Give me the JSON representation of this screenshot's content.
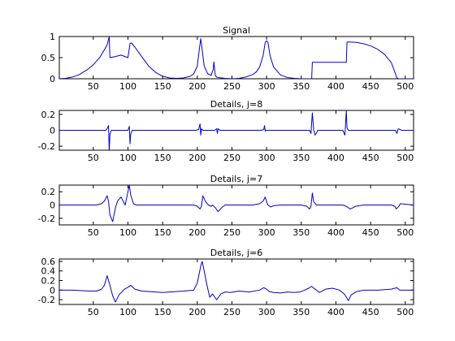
{
  "figure": {
    "background": "#ffffff",
    "line_color": "#0000c8"
  },
  "chart_data": [
    {
      "type": "line",
      "title": "Signal",
      "xlabel": "",
      "ylabel": "",
      "xlim": [
        1,
        512
      ],
      "ylim": [
        0,
        1
      ],
      "xticks": [
        50,
        100,
        150,
        200,
        250,
        300,
        350,
        400,
        450,
        500
      ],
      "yticks": [
        0,
        0.5,
        1
      ],
      "ytick_labels": [
        "0",
        "0.5",
        "1"
      ],
      "grid": false,
      "series": [
        {
          "x": [
            1,
            10,
            20,
            30,
            40,
            50,
            60,
            70,
            73,
            74,
            80,
            90,
            100,
            103,
            105,
            110,
            120,
            130,
            140,
            150,
            160,
            170,
            180,
            190,
            195,
            200,
            203,
            205,
            207,
            210,
            215,
            220,
            223,
            224,
            225,
            226,
            228,
            230,
            240,
            250,
            260,
            270,
            280,
            285,
            290,
            295,
            298,
            300,
            302,
            305,
            310,
            320,
            330,
            340,
            350,
            360,
            365,
            366,
            375,
            385,
            395,
            405,
            415,
            416,
            420,
            430,
            440,
            450,
            460,
            470,
            480,
            488,
            490,
            500,
            512
          ],
          "y": [
            0.0,
            0.01,
            0.04,
            0.1,
            0.2,
            0.33,
            0.52,
            0.8,
            1.0,
            0.5,
            0.52,
            0.56,
            0.5,
            0.83,
            0.85,
            0.75,
            0.52,
            0.3,
            0.15,
            0.06,
            0.02,
            0.01,
            0.02,
            0.06,
            0.12,
            0.3,
            0.7,
            0.95,
            0.7,
            0.3,
            0.12,
            0.08,
            0.22,
            0.4,
            0.24,
            0.08,
            0.04,
            0.03,
            0.01,
            0.0,
            0.01,
            0.04,
            0.1,
            0.16,
            0.28,
            0.55,
            0.86,
            0.9,
            0.86,
            0.55,
            0.28,
            0.09,
            0.03,
            0.01,
            0.0,
            0.0,
            0.0,
            0.39,
            0.39,
            0.39,
            0.39,
            0.39,
            0.39,
            0.87,
            0.87,
            0.86,
            0.83,
            0.78,
            0.7,
            0.58,
            0.38,
            0.02,
            0.0,
            0.0,
            0.0
          ]
        }
      ]
    },
    {
      "type": "line",
      "title": "Details, j=8",
      "xlabel": "",
      "ylabel": "",
      "xlim": [
        1,
        512
      ],
      "ylim": [
        -0.25,
        0.25
      ],
      "xticks": [
        50,
        100,
        150,
        200,
        250,
        300,
        350,
        400,
        450,
        500
      ],
      "yticks": [
        -0.2,
        0,
        0.2
      ],
      "ytick_labels": [
        "-0.2",
        "0",
        "0.2"
      ],
      "grid": false,
      "series": [
        {
          "x": [
            1,
            60,
            68,
            70,
            72,
            73,
            74,
            76,
            80,
            95,
            100,
            102,
            103,
            104,
            106,
            110,
            150,
            198,
            202,
            204,
            205,
            206,
            208,
            212,
            225,
            228,
            229,
            230,
            233,
            260,
            292,
            296,
            297,
            298,
            299,
            302,
            340,
            355,
            362,
            364,
            366,
            368,
            370,
            374,
            400,
            410,
            413,
            415,
            416,
            418,
            420,
            430,
            470,
            486,
            488,
            490,
            495,
            512
          ],
          "y": [
            0.0,
            0.0,
            0.0,
            0.02,
            0.06,
            -0.27,
            -0.05,
            0.0,
            0.0,
            0.0,
            0.0,
            0.05,
            -0.17,
            -0.05,
            0.0,
            0.0,
            0.0,
            0.0,
            0.01,
            0.08,
            -0.06,
            0.02,
            0.0,
            0.0,
            0.0,
            0.02,
            -0.04,
            0.02,
            0.0,
            0.0,
            0.0,
            0.01,
            0.06,
            -0.01,
            0.0,
            0.0,
            0.0,
            0.0,
            0.0,
            -0.04,
            0.22,
            0.0,
            -0.06,
            0.0,
            0.0,
            0.0,
            -0.06,
            0.25,
            0.03,
            0.0,
            0.0,
            0.0,
            0.0,
            0.0,
            -0.04,
            0.02,
            0.0,
            0.0
          ]
        }
      ]
    },
    {
      "type": "line",
      "title": "Details, j=7",
      "xlabel": "",
      "ylabel": "",
      "xlim": [
        1,
        512
      ],
      "ylim": [
        -0.3,
        0.3
      ],
      "xticks": [
        50,
        100,
        150,
        200,
        250,
        300,
        350,
        400,
        450,
        500
      ],
      "yticks": [
        -0.2,
        0,
        0.2
      ],
      "ytick_labels": [
        "-0.2",
        "0",
        "0.2"
      ],
      "grid": false,
      "series": [
        {
          "x": [
            1,
            55,
            62,
            66,
            70,
            72,
            74,
            78,
            82,
            85,
            90,
            96,
            100,
            102,
            104,
            108,
            112,
            120,
            160,
            195,
            200,
            204,
            206,
            208,
            212,
            216,
            220,
            222,
            226,
            230,
            235,
            240,
            280,
            290,
            295,
            298,
            300,
            302,
            306,
            310,
            320,
            350,
            358,
            362,
            364,
            366,
            368,
            372,
            380,
            395,
            410,
            415,
            418,
            420,
            423,
            428,
            440,
            470,
            480,
            485,
            487,
            490,
            493,
            512
          ],
          "y": [
            0.0,
            0.0,
            0.02,
            0.06,
            0.14,
            0.05,
            -0.15,
            -0.25,
            -0.04,
            0.06,
            0.12,
            0.0,
            0.2,
            0.3,
            0.15,
            0.02,
            0.0,
            0.0,
            0.0,
            0.0,
            -0.02,
            -0.06,
            -0.02,
            0.14,
            0.05,
            0.0,
            -0.02,
            0.0,
            -0.04,
            -0.1,
            -0.04,
            0.0,
            0.0,
            0.02,
            0.06,
            0.12,
            0.05,
            0.0,
            -0.03,
            -0.01,
            0.0,
            0.0,
            -0.02,
            -0.06,
            -0.02,
            0.18,
            0.05,
            0.0,
            0.0,
            0.0,
            0.0,
            -0.02,
            -0.04,
            -0.06,
            -0.05,
            -0.02,
            0.0,
            0.0,
            0.0,
            -0.02,
            -0.06,
            -0.03,
            0.02,
            0.0
          ]
        }
      ]
    },
    {
      "type": "line",
      "title": "Details, j=6",
      "xlabel": "",
      "ylabel": "",
      "xlim": [
        1,
        512
      ],
      "ylim": [
        -0.3,
        0.65
      ],
      "xticks": [
        50,
        100,
        150,
        200,
        250,
        300,
        350,
        400,
        450,
        500
      ],
      "yticks": [
        -0.2,
        0,
        0.2,
        0.4,
        0.6
      ],
      "ytick_labels": [
        "-0.2",
        "0",
        "0.2",
        "0.4",
        "0.6"
      ],
      "grid": false,
      "series": [
        {
          "x": [
            1,
            20,
            45,
            55,
            62,
            66,
            70,
            74,
            78,
            82,
            87,
            95,
            100,
            104,
            110,
            120,
            150,
            180,
            195,
            200,
            205,
            207,
            210,
            214,
            218,
            222,
            228,
            234,
            240,
            248,
            260,
            275,
            290,
            296,
            300,
            304,
            310,
            320,
            330,
            340,
            348,
            355,
            362,
            365,
            368,
            372,
            376,
            385,
            395,
            405,
            412,
            418,
            422,
            430,
            440,
            460,
            480,
            485,
            488,
            492,
            500,
            512
          ],
          "y": [
            0.0,
            0.0,
            -0.02,
            -0.02,
            0.02,
            0.1,
            0.3,
            0.1,
            -0.12,
            -0.25,
            -0.1,
            0.02,
            0.06,
            0.1,
            0.02,
            -0.02,
            -0.05,
            -0.02,
            0.0,
            0.15,
            0.5,
            0.6,
            0.4,
            0.1,
            -0.15,
            -0.08,
            -0.2,
            -0.08,
            -0.04,
            -0.05,
            -0.02,
            -0.04,
            0.0,
            0.05,
            0.02,
            -0.03,
            -0.05,
            -0.06,
            -0.04,
            -0.05,
            -0.04,
            0.0,
            0.05,
            0.08,
            0.04,
            0.0,
            -0.05,
            0.02,
            0.04,
            0.0,
            -0.08,
            -0.22,
            -0.1,
            -0.03,
            0.0,
            0.0,
            0.02,
            0.04,
            0.05,
            0.0,
            0.0,
            0.0
          ]
        }
      ]
    }
  ]
}
